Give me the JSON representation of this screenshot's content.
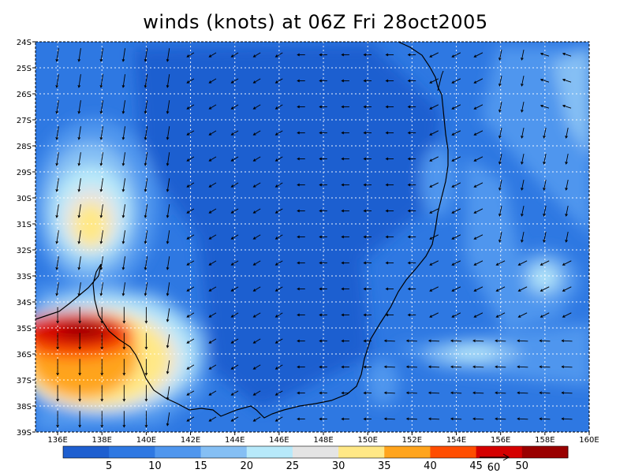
{
  "title": "winds (knots) at 06Z Fri 28oct2005",
  "chart_data": {
    "type": "heatmap",
    "title": "winds (knots) at 06Z Fri 28oct2005",
    "lon_range": [
      135,
      160
    ],
    "lat_range": [
      -39,
      -24
    ],
    "x_ticks": [
      "136E",
      "138E",
      "140E",
      "142E",
      "144E",
      "146E",
      "148E",
      "150E",
      "152E",
      "154E",
      "156E",
      "158E",
      "160E"
    ],
    "y_ticks": [
      "24S",
      "25S",
      "26S",
      "27S",
      "28S",
      "29S",
      "30S",
      "31S",
      "32S",
      "33S",
      "34S",
      "35S",
      "36S",
      "37S",
      "38S",
      "39S"
    ],
    "grid": true,
    "colorbar": {
      "labels": [
        "5",
        "10",
        "15",
        "20",
        "25",
        "30",
        "35",
        "40",
        "45",
        "50"
      ],
      "colors": [
        "#1e5fd0",
        "#2e78e2",
        "#4f96ee",
        "#85bff4",
        "#b7e9fa",
        "#e4e4e4",
        "#ffe886",
        "#ffa41c",
        "#ff4d00",
        "#d50000",
        "#9a0000"
      ]
    },
    "vector_reference": {
      "value": "60"
    }
  },
  "colors": {
    "c5": "#1e5fd0",
    "c10": "#2e78e2",
    "c15": "#4f96ee",
    "c20": "#85bff4",
    "c25": "#b7e9fa",
    "c30": "#e4e4e4",
    "c35": "#ffe886",
    "c40": "#ffa41c",
    "c45": "#ff4d00",
    "c50": "#d50000",
    "c55": "#9a0000"
  }
}
